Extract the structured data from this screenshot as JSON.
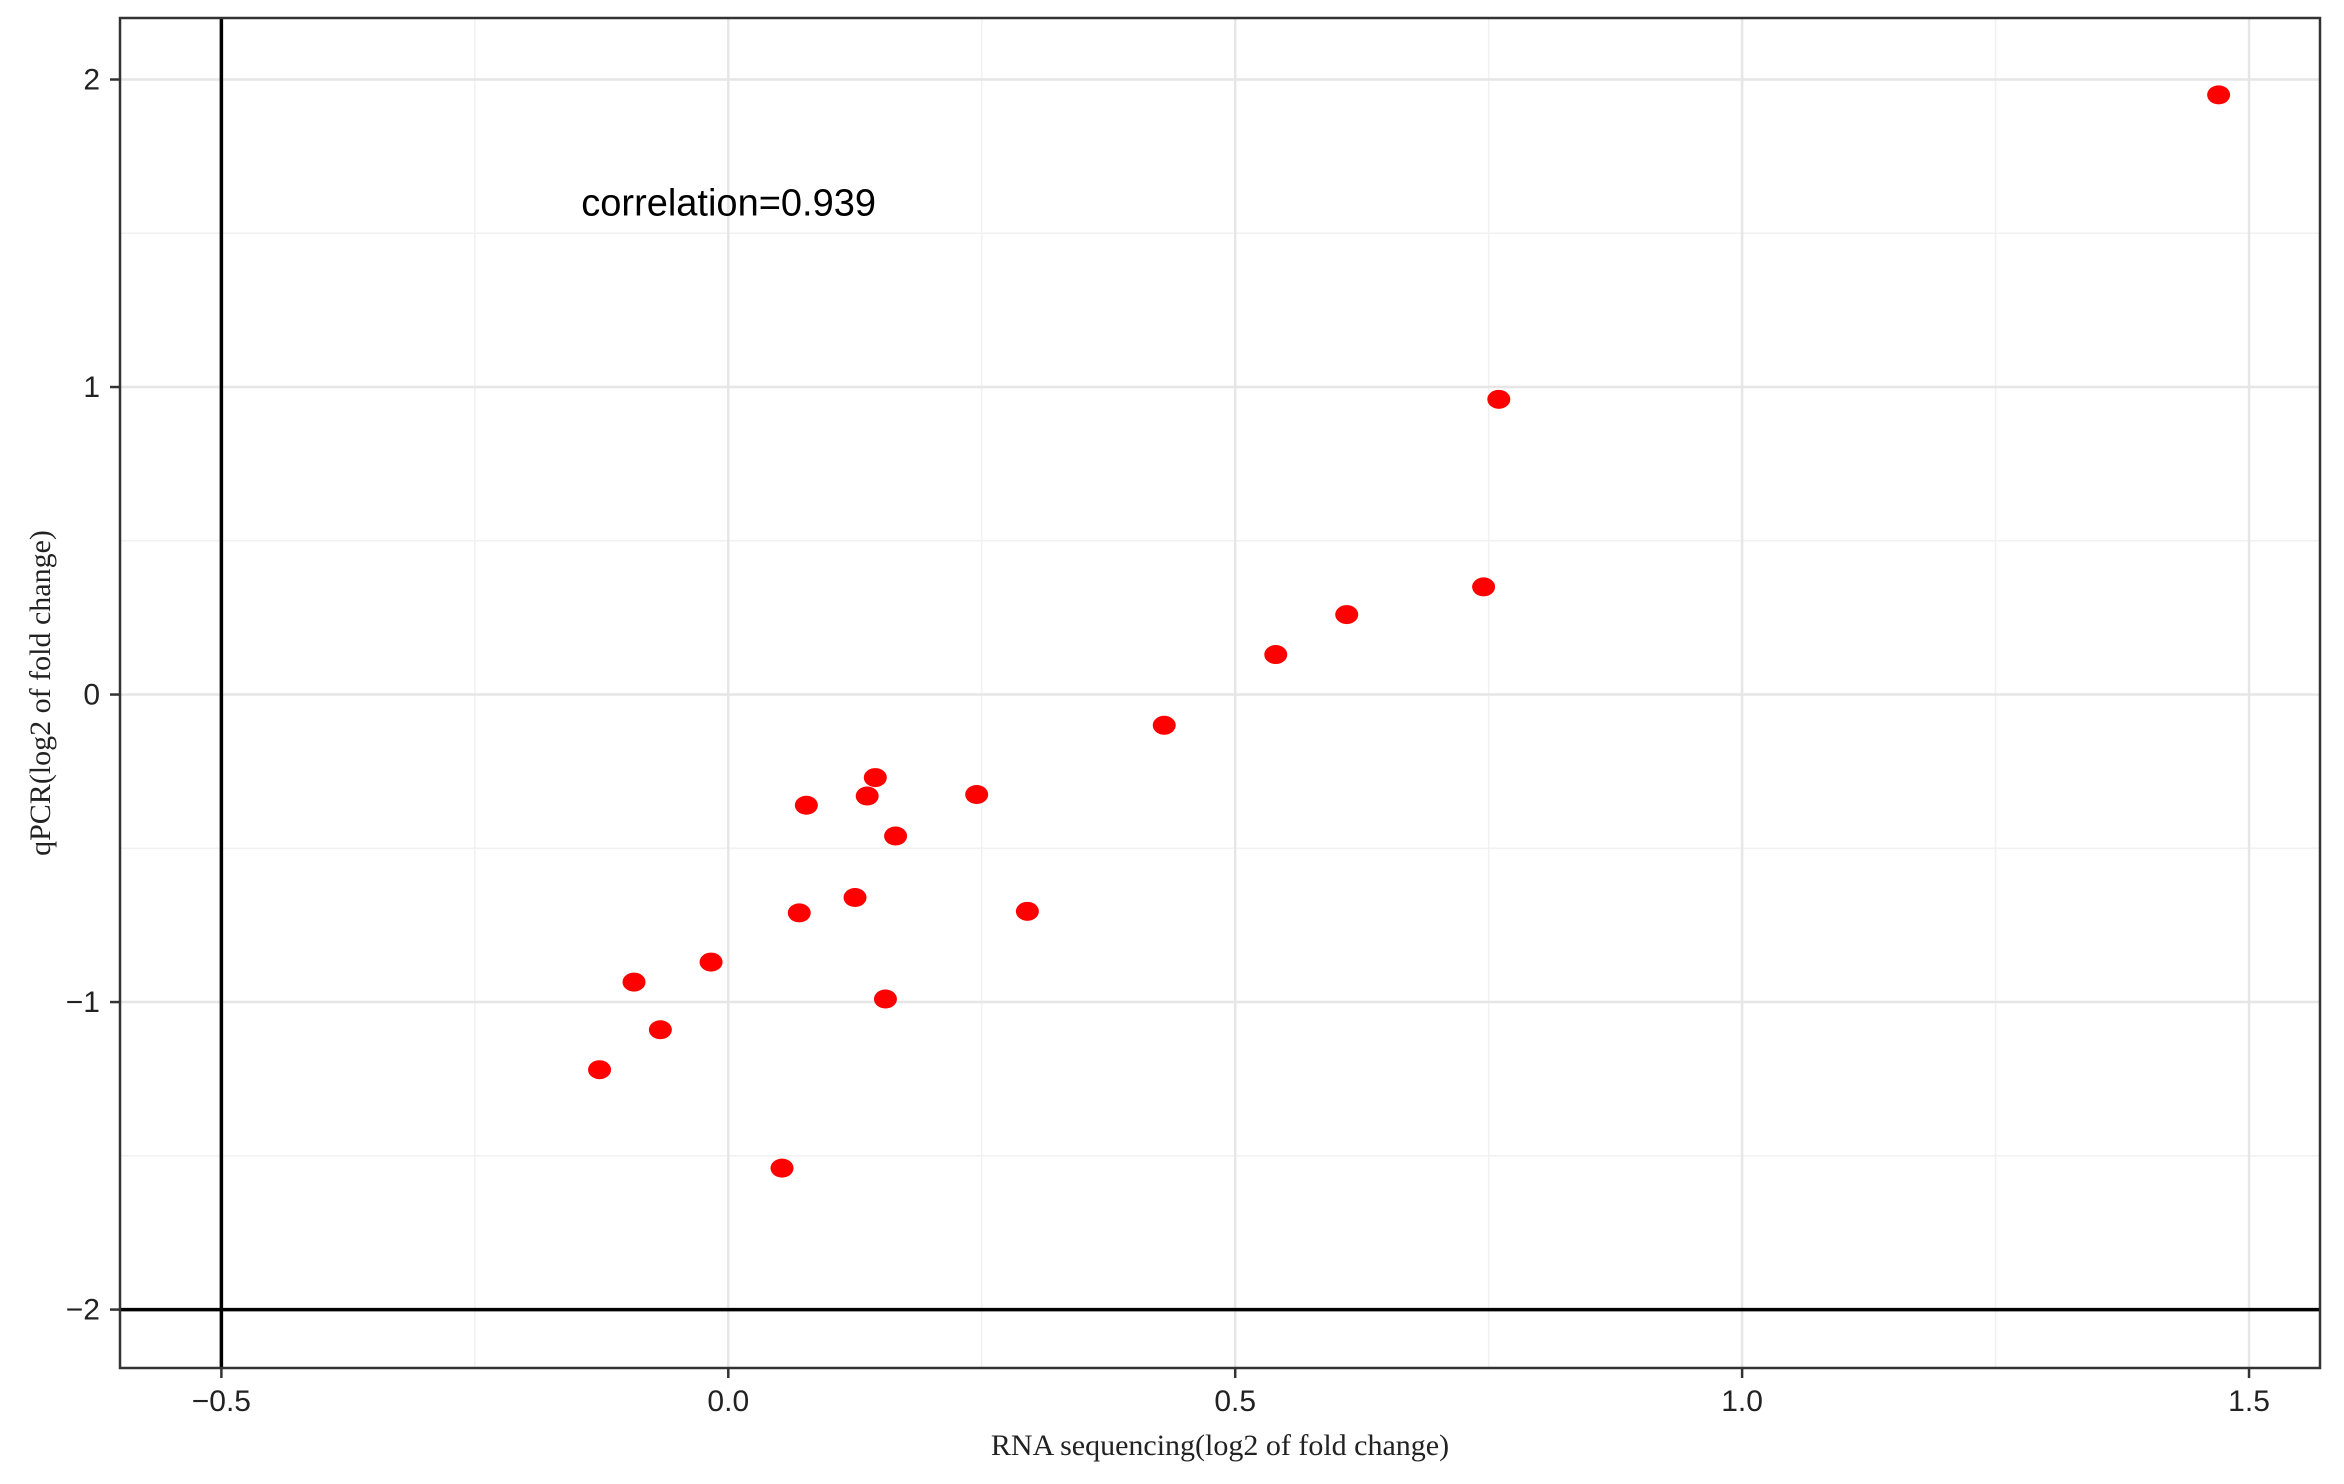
{
  "chart_data": {
    "type": "scatter",
    "title": "",
    "xlabel": "RNA sequencing(log2 of fold change)",
    "ylabel": "qPCR(log2 of fold change)",
    "xlim": [
      -0.6,
      1.57
    ],
    "ylim": [
      -2.19,
      2.2
    ],
    "x_ticks": [
      -0.5,
      0.0,
      0.5,
      1.0,
      1.5
    ],
    "x_tick_labels": [
      "−0.5",
      "0.0",
      "0.5",
      "1.0",
      "1.5"
    ],
    "y_ticks": [
      -2,
      -1,
      0,
      1,
      2
    ],
    "y_tick_labels": [
      "−2",
      "−1",
      "0",
      "1",
      "2"
    ],
    "grid": true,
    "reference_lines": {
      "x": -0.5,
      "y": -2
    },
    "annotation": {
      "text": "correlation=0.939",
      "x": -0.145,
      "y": 1.6
    },
    "point_color": "#ff0000",
    "series": [
      {
        "points": [
          [
            1.47,
            1.95
          ],
          [
            0.76,
            0.96
          ],
          [
            0.745,
            0.35
          ],
          [
            0.61,
            0.26
          ],
          [
            0.54,
            0.13
          ],
          [
            0.43,
            -0.1
          ],
          [
            0.145,
            -0.27
          ],
          [
            0.137,
            -0.33
          ],
          [
            0.245,
            -0.325
          ],
          [
            0.077,
            -0.36
          ],
          [
            0.165,
            -0.46
          ],
          [
            0.125,
            -0.66
          ],
          [
            0.07,
            -0.71
          ],
          [
            0.295,
            -0.705
          ],
          [
            -0.017,
            -0.87
          ],
          [
            0.155,
            -0.99
          ],
          [
            -0.093,
            -0.935
          ],
          [
            -0.067,
            -1.09
          ],
          [
            -0.127,
            -1.22
          ],
          [
            0.053,
            -1.54
          ]
        ]
      }
    ]
  }
}
